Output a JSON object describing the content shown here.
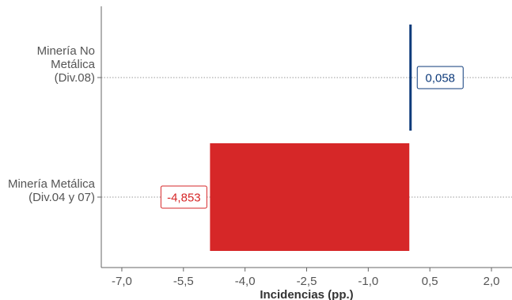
{
  "chart_data": {
    "type": "bar",
    "orientation": "horizontal",
    "title_fragment": "(          )",
    "categories": [
      [
        "Minería No",
        "Metálica",
        "(Div.08)"
      ],
      [
        "Minería Metálica",
        "(Div.04 y 07)"
      ]
    ],
    "values": [
      0.058,
      -4.853
    ],
    "value_labels": [
      "0,058",
      "-4,853"
    ],
    "colors": [
      "#0d3a7a",
      "#d62728"
    ],
    "xlabel": "Incidencias (pp.)",
    "xlim": [
      -7.5,
      2.5
    ],
    "xticks": [
      -7.0,
      -5.5,
      -4.0,
      -2.5,
      -1.0,
      0.5,
      2.0
    ],
    "xtick_labels": [
      "-7,0",
      "-5,5",
      "-4,0",
      "-2,5",
      "-1,0",
      "0,5",
      "2,0"
    ],
    "grid": "horizontal dotted gridlines"
  }
}
